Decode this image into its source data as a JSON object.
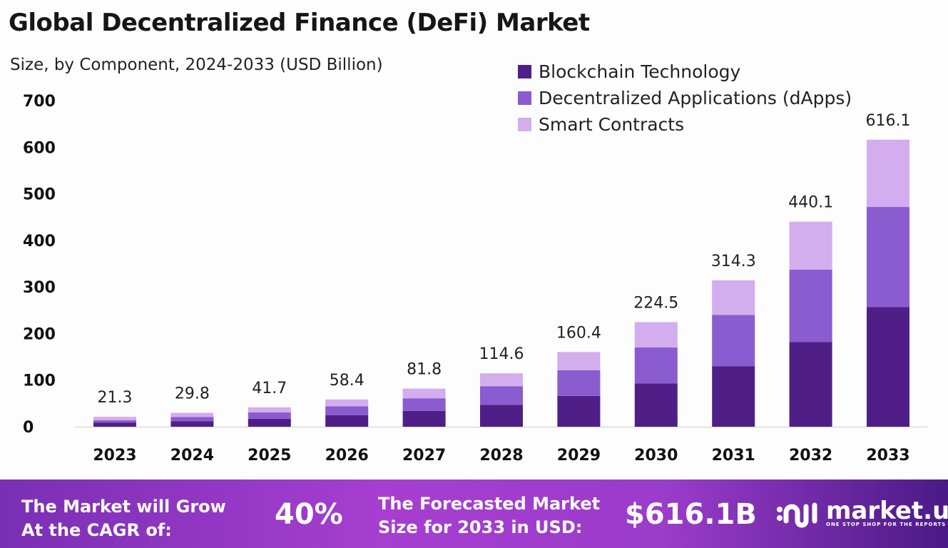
{
  "chart_data": {
    "type": "bar",
    "stacked": true,
    "title": "Global Decentralized Finance (DeFi) Market",
    "subtitle": "Size, by Component, 2024-2033 (USD Billion)",
    "categories": [
      "2023",
      "2024",
      "2025",
      "2026",
      "2027",
      "2028",
      "2029",
      "2030",
      "2031",
      "2032",
      "2033"
    ],
    "series": [
      {
        "name": "Blockchain Technology",
        "color": "#4f1f87",
        "values": [
          9,
          12,
          17,
          24.5,
          34,
          47,
          66,
          93,
          130,
          182,
          257
        ]
      },
      {
        "name": "Decentralized Applications (dApps)",
        "color": "#8a5ccf",
        "values": [
          5,
          9,
          14,
          19.5,
          27,
          40,
          55,
          77,
          110,
          155,
          214.7
        ]
      },
      {
        "name": "Smart Contracts",
        "color": "#d3adee",
        "values": [
          7.3,
          8.8,
          10.7,
          14.4,
          20.8,
          27.6,
          39.4,
          54.5,
          74.3,
          103.1,
          144.4
        ]
      }
    ],
    "totals": [
      "21.3",
      "29.8",
      "41.7",
      "58.4",
      "81.8",
      "114.6",
      "160.4",
      "224.5",
      "314.3",
      "440.1",
      "616.1"
    ],
    "ylim": [
      0,
      700
    ],
    "yticks": [
      "0",
      "100",
      "200",
      "300",
      "400",
      "500",
      "600",
      "700"
    ],
    "grid": false,
    "legend": "top-right"
  },
  "footer": {
    "cagr_label_1": "The Market will Grow",
    "cagr_label_2": "At the CAGR of:",
    "cagr_value": "40%",
    "forecast_label_1": "The Forecasted Market",
    "forecast_label_2": "Size for 2033 in USD:",
    "forecast_value": "$616.1B",
    "brand": "market.us",
    "tagline": "ONE STOP SHOP FOR THE REPORTS"
  }
}
